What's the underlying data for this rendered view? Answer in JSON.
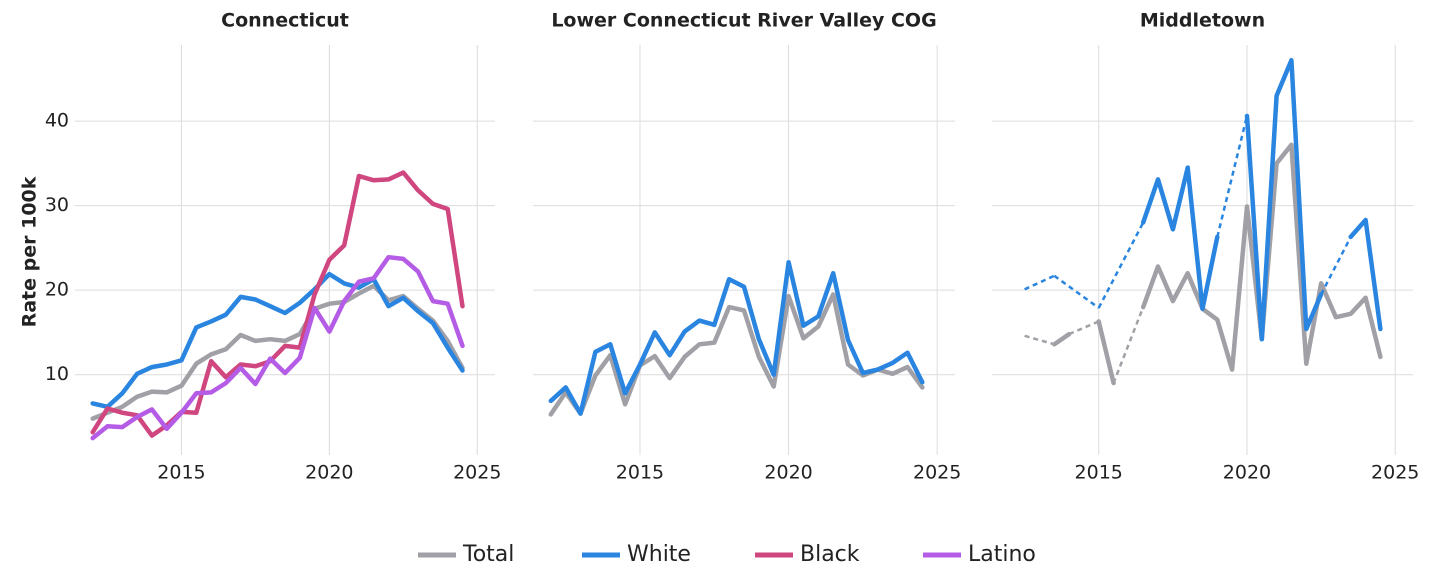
{
  "chart_data": [
    {
      "type": "line",
      "title": "Connecticut",
      "ylabel": "Rate per 100k",
      "x": [
        2012,
        2012.5,
        2013,
        2013.5,
        2014,
        2014.5,
        2015,
        2015.5,
        2016,
        2016.5,
        2017,
        2017.5,
        2018,
        2018.5,
        2019,
        2019.5,
        2020,
        2020.5,
        2021,
        2021.5,
        2022,
        2022.5,
        2023,
        2023.5,
        2024,
        2024.5
      ],
      "series": [
        {
          "name": "Total",
          "color": "#a0a0a6",
          "values": [
            4.8,
            5.5,
            6.2,
            7.4,
            8.0,
            7.9,
            8.7,
            11.3,
            12.4,
            13.0,
            14.7,
            14.0,
            14.2,
            14.0,
            14.8,
            17.8,
            18.4,
            18.6,
            19.6,
            20.5,
            18.8,
            19.3,
            17.8,
            16.4,
            14.0,
            10.8
          ]
        },
        {
          "name": "White",
          "color": "#2a85e0",
          "values": [
            6.6,
            6.2,
            7.8,
            10.1,
            10.9,
            11.2,
            11.7,
            15.6,
            16.3,
            17.1,
            19.2,
            18.9,
            18.1,
            17.3,
            18.5,
            20.1,
            21.9,
            20.8,
            20.3,
            21.3,
            18.1,
            19.1,
            17.5,
            16.1,
            13.2,
            10.5
          ]
        },
        {
          "name": "Black",
          "color": "#d0467f",
          "values": [
            3.2,
            6.0,
            5.5,
            5.2,
            2.8,
            4.0,
            5.6,
            5.5,
            11.6,
            9.7,
            11.2,
            11.0,
            11.6,
            13.4,
            13.2,
            19.5,
            23.6,
            25.3,
            33.5,
            33.0,
            33.1,
            33.9,
            31.8,
            30.2,
            29.6,
            18.1
          ]
        },
        {
          "name": "Latino",
          "color": "#b55ce6",
          "values": [
            2.5,
            3.9,
            3.8,
            5.0,
            5.9,
            3.6,
            5.5,
            7.8,
            7.9,
            9.0,
            10.8,
            8.9,
            11.9,
            10.2,
            12.0,
            17.9,
            15.1,
            18.7,
            21.0,
            21.4,
            23.9,
            23.7,
            22.2,
            18.7,
            18.4,
            13.4
          ]
        }
      ],
      "xlim": [
        2011.4,
        2025.6
      ],
      "ylim": [
        0.5,
        49
      ],
      "xticks": [
        2015,
        2020,
        2025
      ],
      "yticks": [
        10,
        20,
        30,
        40
      ],
      "grid": true
    },
    {
      "type": "line",
      "title": "Lower Connecticut River Valley COG",
      "x": [
        2012,
        2012.5,
        2013,
        2013.5,
        2014,
        2014.5,
        2015,
        2015.5,
        2016,
        2016.5,
        2017,
        2017.5,
        2018,
        2018.5,
        2019,
        2019.5,
        2020,
        2020.5,
        2021,
        2021.5,
        2022,
        2022.5,
        2023,
        2023.5,
        2024,
        2024.5
      ],
      "series": [
        {
          "name": "Total",
          "color": "#a0a0a6",
          "values": [
            5.3,
            7.9,
            5.4,
            9.9,
            12.3,
            6.5,
            11.1,
            12.2,
            9.6,
            12.1,
            13.6,
            13.8,
            18.0,
            17.6,
            12.1,
            8.6,
            19.3,
            14.3,
            15.7,
            19.5,
            11.2,
            9.9,
            10.6,
            10.1,
            10.9,
            8.5
          ]
        },
        {
          "name": "White",
          "color": "#2a85e0",
          "values": [
            6.9,
            8.5,
            5.4,
            12.7,
            13.6,
            7.8,
            11.2,
            15.0,
            12.3,
            15.1,
            16.4,
            15.9,
            21.3,
            20.4,
            14.2,
            10.0,
            23.3,
            15.8,
            16.9,
            22.0,
            14.1,
            10.2,
            10.6,
            11.4,
            12.6,
            9.1
          ]
        }
      ],
      "xlim": [
        2011.4,
        2025.6
      ],
      "ylim": [
        0.5,
        49
      ],
      "xticks": [
        2015,
        2020,
        2025
      ],
      "yticks": [
        10,
        20,
        30,
        40
      ],
      "grid": true
    },
    {
      "type": "line",
      "title": "Middletown",
      "x": [
        2012.5,
        2013,
        2013.5,
        2014,
        2014.5,
        2015,
        2015.5,
        2016,
        2016.5,
        2017,
        2017.5,
        2018,
        2018.5,
        2019,
        2019.5,
        2020,
        2020.5,
        2021,
        2021.5,
        2022,
        2022.5,
        2023,
        2023.5,
        2024,
        2024.5
      ],
      "series": [
        {
          "name": "Total",
          "color": "#a0a0a6",
          "values": [
            14.6,
            null,
            13.6,
            14.8,
            null,
            16.3,
            9.0,
            null,
            18.0,
            22.8,
            18.7,
            22.0,
            17.8,
            16.5,
            10.6,
            29.9,
            14.2,
            35.0,
            37.2,
            11.3,
            20.8,
            16.8,
            17.2,
            19.1,
            12.1
          ]
        },
        {
          "name": "White",
          "color": "#2a85e0",
          "values": [
            20.1,
            null,
            21.7,
            null,
            null,
            17.9,
            null,
            null,
            28.0,
            33.1,
            27.2,
            34.5,
            17.8,
            26.3,
            null,
            40.6,
            14.2,
            43.0,
            47.2,
            15.4,
            19.5,
            null,
            26.3,
            28.3,
            15.4
          ]
        }
      ],
      "xlim": [
        2011.4,
        2025.6
      ],
      "ylim": [
        0.5,
        49
      ],
      "xticks": [
        2015,
        2020,
        2025
      ],
      "yticks": [
        10,
        20,
        30,
        40
      ],
      "grid": true
    }
  ]
}
